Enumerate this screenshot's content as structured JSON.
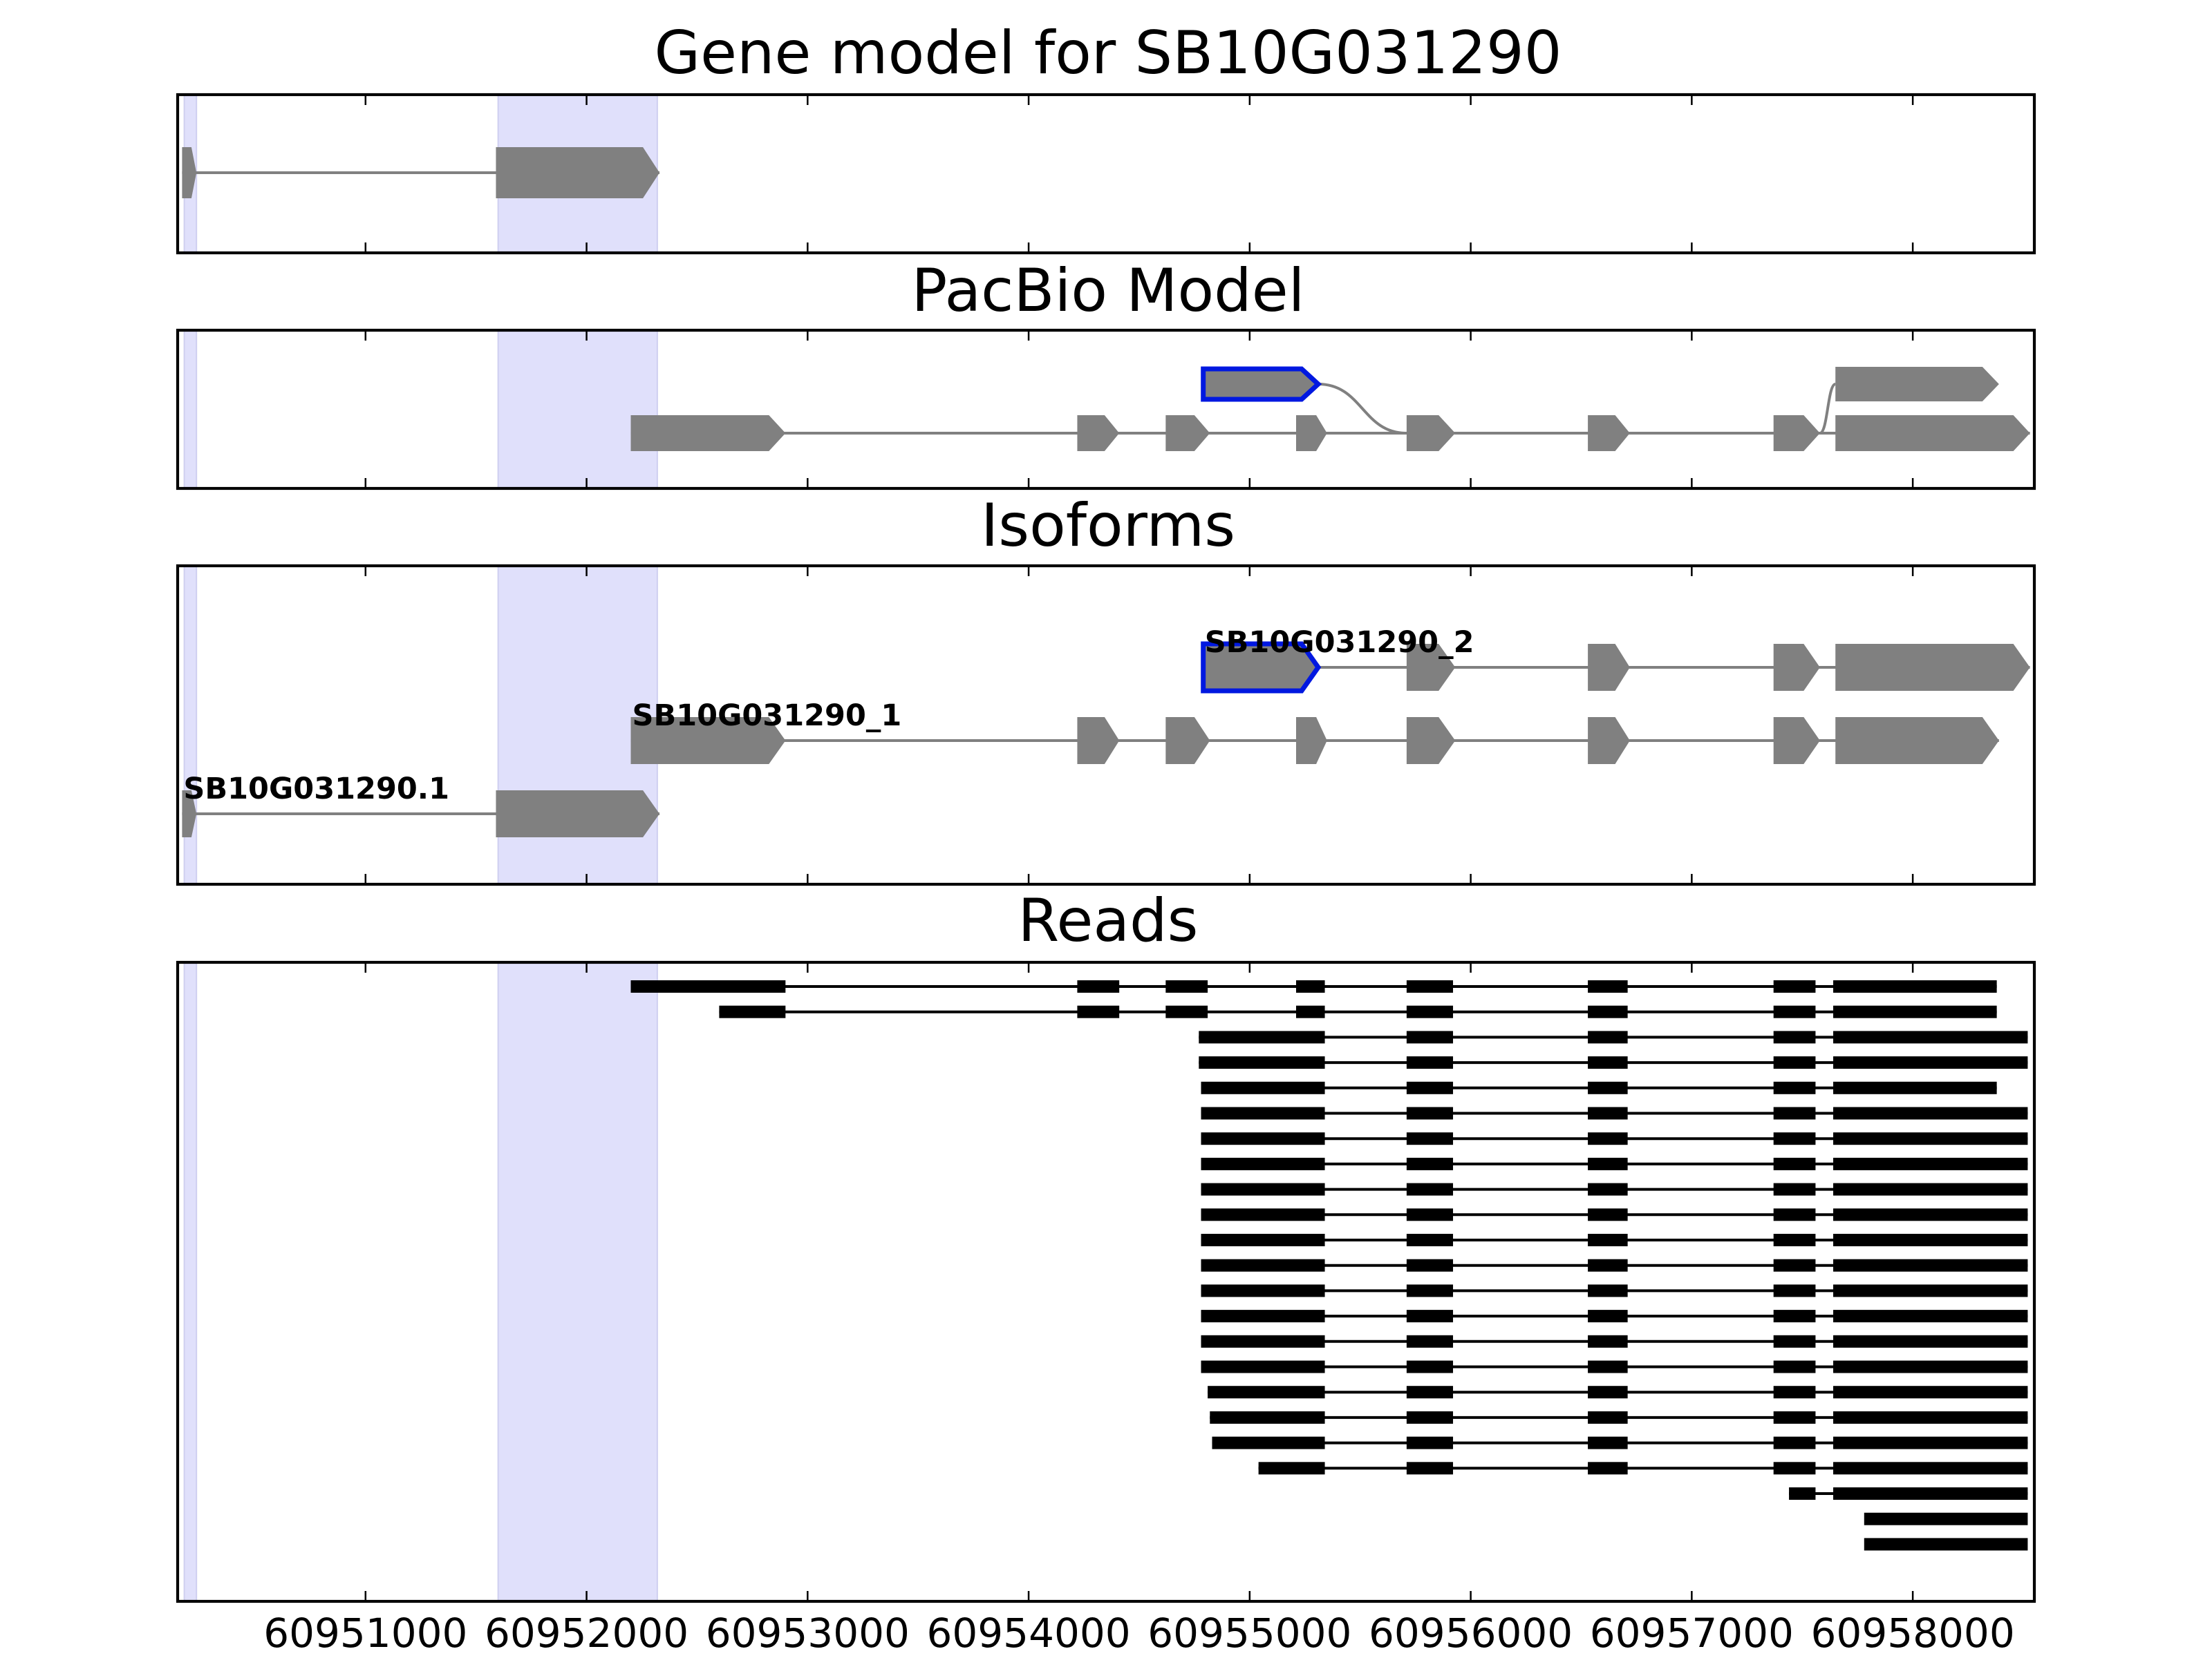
{
  "panels": {
    "gene": {
      "title": "Gene model for SB10G031290"
    },
    "pacbio": {
      "title": "PacBio Model"
    },
    "isoforms": {
      "title": "Isoforms"
    },
    "reads": {
      "title": "Reads"
    }
  },
  "chart_data": {
    "type": "gene-structure",
    "x_range": [
      60950150,
      60958550
    ],
    "x_ticks": [
      {
        "value": 60951000,
        "label": "60951000"
      },
      {
        "value": 60952000,
        "label": "60952000"
      },
      {
        "value": 60953000,
        "label": "60953000"
      },
      {
        "value": 60954000,
        "label": "60954000"
      },
      {
        "value": 60955000,
        "label": "60955000"
      },
      {
        "value": 60956000,
        "label": "60956000"
      },
      {
        "value": 60957000,
        "label": "60957000"
      },
      {
        "value": 60958000,
        "label": "60958000"
      }
    ],
    "highlight_regions": [
      [
        60950180,
        60950235
      ],
      [
        60951600,
        60952320
      ]
    ],
    "gene_model": {
      "exons": [
        [
          60950170,
          60950235
        ],
        [
          60951590,
          60952330
        ]
      ]
    },
    "pacbio_model": {
      "rows": [
        {
          "exons": [
            [
              60954790,
              60955310
            ],
            [
              60957650,
              60958390
            ]
          ]
        },
        {
          "exons": [
            [
              60952200,
              60952900
            ],
            [
              60954220,
              60954410
            ],
            [
              60954620,
              60954820
            ],
            [
              60955210,
              60955350
            ],
            [
              60955710,
              60955930
            ],
            [
              60956530,
              60956720
            ],
            [
              60957370,
              60957580
            ],
            [
              60957650,
              60958530
            ]
          ]
        }
      ],
      "highlighted_exon": [
        60954790,
        60955310
      ],
      "junction_curves": [
        {
          "from": [
            0,
            60955310
          ],
          "to": [
            1,
            60955710
          ]
        },
        {
          "from": [
            1,
            60957580
          ],
          "to": [
            0,
            60957650
          ]
        }
      ]
    },
    "isoforms": [
      {
        "label": "SB10G031290_2",
        "exons": [
          [
            60954790,
            60955310
          ],
          [
            60955710,
            60955930
          ],
          [
            60956530,
            60956720
          ],
          [
            60957370,
            60957580
          ],
          [
            60957650,
            60958530
          ]
        ],
        "highlighted_exon": [
          60954790,
          60955310
        ]
      },
      {
        "label": "SB10G031290_1",
        "exons": [
          [
            60952200,
            60952900
          ],
          [
            60954220,
            60954410
          ],
          [
            60954620,
            60954820
          ],
          [
            60955210,
            60955350
          ],
          [
            60955710,
            60955930
          ],
          [
            60956530,
            60956720
          ],
          [
            60957370,
            60957580
          ],
          [
            60957650,
            60958390
          ]
        ]
      },
      {
        "label": "SB10G031290.1",
        "exons": [
          [
            60950170,
            60950235
          ],
          [
            60951590,
            60952330
          ]
        ]
      }
    ],
    "reads": [
      [
        [
          60952200,
          60952900
        ],
        [
          60954220,
          60954410
        ],
        [
          60954620,
          60954810
        ],
        [
          60955210,
          60955340
        ],
        [
          60955710,
          60955920
        ],
        [
          60956530,
          60956710
        ],
        [
          60957370,
          60957560
        ],
        [
          60957640,
          60958380
        ]
      ],
      [
        [
          60952600,
          60952900
        ],
        [
          60954220,
          60954410
        ],
        [
          60954620,
          60954810
        ],
        [
          60955210,
          60955340
        ],
        [
          60955710,
          60955920
        ],
        [
          60956530,
          60956710
        ],
        [
          60957370,
          60957560
        ],
        [
          60957640,
          60958380
        ]
      ],
      [
        [
          60954770,
          60955340
        ],
        [
          60955710,
          60955920
        ],
        [
          60956530,
          60956710
        ],
        [
          60957370,
          60957560
        ],
        [
          60957640,
          60958520
        ]
      ],
      [
        [
          60954770,
          60955340
        ],
        [
          60955710,
          60955920
        ],
        [
          60956530,
          60956710
        ],
        [
          60957370,
          60957560
        ],
        [
          60957640,
          60958520
        ]
      ],
      [
        [
          60954780,
          60955340
        ],
        [
          60955710,
          60955920
        ],
        [
          60956530,
          60956710
        ],
        [
          60957370,
          60957560
        ],
        [
          60957640,
          60958380
        ]
      ],
      [
        [
          60954780,
          60955340
        ],
        [
          60955710,
          60955920
        ],
        [
          60956530,
          60956710
        ],
        [
          60957370,
          60957560
        ],
        [
          60957640,
          60958520
        ]
      ],
      [
        [
          60954780,
          60955340
        ],
        [
          60955710,
          60955920
        ],
        [
          60956530,
          60956710
        ],
        [
          60957370,
          60957560
        ],
        [
          60957640,
          60958520
        ]
      ],
      [
        [
          60954780,
          60955340
        ],
        [
          60955710,
          60955920
        ],
        [
          60956530,
          60956710
        ],
        [
          60957370,
          60957560
        ],
        [
          60957640,
          60958520
        ]
      ],
      [
        [
          60954780,
          60955340
        ],
        [
          60955710,
          60955920
        ],
        [
          60956530,
          60956710
        ],
        [
          60957370,
          60957560
        ],
        [
          60957640,
          60958520
        ]
      ],
      [
        [
          60954780,
          60955340
        ],
        [
          60955710,
          60955920
        ],
        [
          60956530,
          60956710
        ],
        [
          60957370,
          60957560
        ],
        [
          60957640,
          60958520
        ]
      ],
      [
        [
          60954780,
          60955340
        ],
        [
          60955710,
          60955920
        ],
        [
          60956530,
          60956710
        ],
        [
          60957370,
          60957560
        ],
        [
          60957640,
          60958520
        ]
      ],
      [
        [
          60954780,
          60955340
        ],
        [
          60955710,
          60955920
        ],
        [
          60956530,
          60956710
        ],
        [
          60957370,
          60957560
        ],
        [
          60957640,
          60958520
        ]
      ],
      [
        [
          60954780,
          60955340
        ],
        [
          60955710,
          60955920
        ],
        [
          60956530,
          60956710
        ],
        [
          60957370,
          60957560
        ],
        [
          60957640,
          60958520
        ]
      ],
      [
        [
          60954780,
          60955340
        ],
        [
          60955710,
          60955920
        ],
        [
          60956530,
          60956710
        ],
        [
          60957370,
          60957560
        ],
        [
          60957640,
          60958520
        ]
      ],
      [
        [
          60954780,
          60955340
        ],
        [
          60955710,
          60955920
        ],
        [
          60956530,
          60956710
        ],
        [
          60957370,
          60957560
        ],
        [
          60957640,
          60958520
        ]
      ],
      [
        [
          60954780,
          60955340
        ],
        [
          60955710,
          60955920
        ],
        [
          60956530,
          60956710
        ],
        [
          60957370,
          60957560
        ],
        [
          60957640,
          60958520
        ]
      ],
      [
        [
          60954810,
          60955340
        ],
        [
          60955710,
          60955920
        ],
        [
          60956530,
          60956710
        ],
        [
          60957370,
          60957560
        ],
        [
          60957640,
          60958520
        ]
      ],
      [
        [
          60954820,
          60955340
        ],
        [
          60955710,
          60955920
        ],
        [
          60956530,
          60956710
        ],
        [
          60957370,
          60957560
        ],
        [
          60957640,
          60958520
        ]
      ],
      [
        [
          60954830,
          60955340
        ],
        [
          60955710,
          60955920
        ],
        [
          60956530,
          60956710
        ],
        [
          60957370,
          60957560
        ],
        [
          60957640,
          60958520
        ]
      ],
      [
        [
          60955040,
          60955340
        ],
        [
          60955710,
          60955920
        ],
        [
          60956530,
          60956710
        ],
        [
          60957370,
          60957560
        ],
        [
          60957640,
          60958520
        ]
      ],
      [
        [
          60957440,
          60957560
        ],
        [
          60957640,
          60958520
        ]
      ],
      [
        [
          60957780,
          60958520
        ]
      ],
      [
        [
          60957780,
          60958520
        ]
      ]
    ]
  }
}
